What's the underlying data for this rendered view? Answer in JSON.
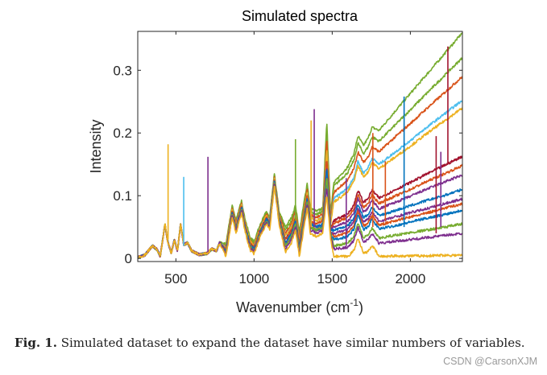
{
  "chart_data": {
    "type": "line",
    "title": "Simulated spectra",
    "xlabel": "Wavenumber (cm",
    "xlabel_sup": "-1",
    "xlabel_close": ")",
    "ylabel": "Intensity",
    "xlim": [
      256,
      2333
    ],
    "ylim": [
      -0.005,
      0.362
    ],
    "xticks": [
      500,
      1000,
      1500,
      2000
    ],
    "xtick_labels": [
      "500",
      "1000",
      "1500",
      "2000"
    ],
    "yticks": [
      0,
      0.1,
      0.2,
      0.3
    ],
    "ytick_labels": [
      "0",
      "0.1",
      "0.2",
      "0.3"
    ],
    "grid": false,
    "legend": "none",
    "x": [
      260,
      300,
      350,
      380,
      400,
      430,
      445,
      470,
      490,
      510,
      530,
      550,
      575,
      600,
      650,
      700,
      730,
      760,
      780,
      820,
      860,
      885,
      920,
      940,
      975,
      1000,
      1040,
      1080,
      1100,
      1130,
      1160,
      1200,
      1240,
      1265,
      1290,
      1320,
      1340,
      1360,
      1400,
      1440,
      1465,
      1490,
      1510,
      1550,
      1600,
      1640,
      1665,
      1700,
      1730,
      1755,
      1800,
      1900,
      2000,
      2100,
      2200,
      2333
    ],
    "series": [
      {
        "color": "#77AC30",
        "values": [
          0.002,
          0.005,
          0.02,
          0.014,
          0.003,
          0.055,
          0.03,
          0.008,
          0.03,
          0.012,
          0.055,
          0.022,
          0.025,
          0.012,
          0.006,
          0.008,
          0.015,
          0.012,
          0.025,
          0.023,
          0.085,
          0.06,
          0.093,
          0.065,
          0.033,
          0.027,
          0.055,
          0.075,
          0.065,
          0.135,
          0.075,
          0.05,
          0.065,
          0.085,
          0.042,
          0.09,
          0.12,
          0.08,
          0.075,
          0.08,
          0.22,
          0.07,
          0.12,
          0.132,
          0.146,
          0.168,
          0.195,
          0.18,
          0.192,
          0.209,
          0.204,
          0.234,
          0.263,
          0.292,
          0.321,
          0.36
        ]
      },
      {
        "color": "#77AC30",
        "values": [
          0.002,
          0.005,
          0.02,
          0.014,
          0.003,
          0.055,
          0.03,
          0.008,
          0.03,
          0.012,
          0.055,
          0.022,
          0.025,
          0.012,
          0.006,
          0.008,
          0.015,
          0.012,
          0.025,
          0.021,
          0.083,
          0.058,
          0.091,
          0.063,
          0.031,
          0.025,
          0.053,
          0.073,
          0.063,
          0.133,
          0.073,
          0.045,
          0.06,
          0.08,
          0.037,
          0.085,
          0.115,
          0.075,
          0.07,
          0.075,
          0.205,
          0.065,
          0.115,
          0.125,
          0.137,
          0.157,
          0.184,
          0.167,
          0.178,
          0.194,
          0.187,
          0.212,
          0.237,
          0.262,
          0.287,
          0.32
        ]
      },
      {
        "color": "#D95319",
        "values": [
          0.002,
          0.005,
          0.02,
          0.014,
          0.003,
          0.055,
          0.03,
          0.008,
          0.03,
          0.012,
          0.055,
          0.022,
          0.025,
          0.012,
          0.006,
          0.008,
          0.015,
          0.012,
          0.025,
          0.018,
          0.08,
          0.055,
          0.088,
          0.06,
          0.028,
          0.022,
          0.05,
          0.07,
          0.06,
          0.13,
          0.07,
          0.04,
          0.055,
          0.075,
          0.032,
          0.08,
          0.11,
          0.07,
          0.065,
          0.07,
          0.19,
          0.06,
          0.105,
          0.114,
          0.125,
          0.144,
          0.17,
          0.153,
          0.162,
          0.178,
          0.17,
          0.193,
          0.215,
          0.238,
          0.26,
          0.29
        ]
      },
      {
        "color": "#4DBEEE",
        "values": [
          0.002,
          0.005,
          0.02,
          0.014,
          0.003,
          0.055,
          0.03,
          0.008,
          0.03,
          0.012,
          0.055,
          0.022,
          0.025,
          0.012,
          0.006,
          0.008,
          0.015,
          0.012,
          0.025,
          0.016,
          0.078,
          0.053,
          0.086,
          0.058,
          0.026,
          0.02,
          0.048,
          0.068,
          0.058,
          0.128,
          0.068,
          0.035,
          0.05,
          0.07,
          0.027,
          0.075,
          0.105,
          0.065,
          0.06,
          0.065,
          0.175,
          0.055,
          0.095,
          0.103,
          0.112,
          0.13,
          0.155,
          0.136,
          0.145,
          0.16,
          0.15,
          0.169,
          0.188,
          0.208,
          0.227,
          0.252
        ]
      },
      {
        "color": "#EDB120",
        "values": [
          0.002,
          0.005,
          0.02,
          0.014,
          0.003,
          0.055,
          0.03,
          0.008,
          0.03,
          0.012,
          0.055,
          0.022,
          0.025,
          0.012,
          0.006,
          0.008,
          0.015,
          0.012,
          0.025,
          0.016,
          0.078,
          0.053,
          0.086,
          0.058,
          0.026,
          0.02,
          0.048,
          0.068,
          0.058,
          0.128,
          0.068,
          0.035,
          0.05,
          0.07,
          0.027,
          0.075,
          0.105,
          0.065,
          0.06,
          0.065,
          0.175,
          0.055,
          0.09,
          0.097,
          0.106,
          0.124,
          0.148,
          0.13,
          0.138,
          0.153,
          0.143,
          0.161,
          0.179,
          0.198,
          0.216,
          0.24
        ]
      },
      {
        "color": "#A2142F",
        "values": [
          0.002,
          0.005,
          0.02,
          0.014,
          0.003,
          0.055,
          0.03,
          0.008,
          0.03,
          0.012,
          0.055,
          0.022,
          0.025,
          0.012,
          0.006,
          0.008,
          0.015,
          0.012,
          0.025,
          0.013,
          0.075,
          0.05,
          0.083,
          0.055,
          0.023,
          0.017,
          0.045,
          0.065,
          0.055,
          0.125,
          0.065,
          0.03,
          0.045,
          0.065,
          0.022,
          0.07,
          0.1,
          0.06,
          0.055,
          0.06,
          0.16,
          0.05,
          0.06,
          0.065,
          0.071,
          0.086,
          0.109,
          0.089,
          0.096,
          0.109,
          0.096,
          0.109,
          0.121,
          0.134,
          0.146,
          0.163
        ]
      },
      {
        "color": "#D95319",
        "values": [
          0.002,
          0.005,
          0.02,
          0.014,
          0.003,
          0.055,
          0.03,
          0.008,
          0.03,
          0.012,
          0.055,
          0.022,
          0.025,
          0.012,
          0.006,
          0.008,
          0.015,
          0.012,
          0.025,
          0.013,
          0.075,
          0.05,
          0.083,
          0.055,
          0.023,
          0.017,
          0.045,
          0.065,
          0.055,
          0.125,
          0.065,
          0.03,
          0.045,
          0.065,
          0.022,
          0.07,
          0.1,
          0.06,
          0.055,
          0.06,
          0.16,
          0.05,
          0.055,
          0.06,
          0.065,
          0.08,
          0.102,
          0.081,
          0.088,
          0.101,
          0.088,
          0.099,
          0.11,
          0.122,
          0.133,
          0.148
        ]
      },
      {
        "color": "#7E2F8E",
        "values": [
          0.002,
          0.005,
          0.02,
          0.014,
          0.003,
          0.055,
          0.03,
          0.008,
          0.03,
          0.012,
          0.055,
          0.022,
          0.025,
          0.012,
          0.006,
          0.008,
          0.015,
          0.012,
          0.025,
          0.011,
          0.073,
          0.048,
          0.081,
          0.053,
          0.021,
          0.015,
          0.043,
          0.063,
          0.053,
          0.123,
          0.063,
          0.025,
          0.04,
          0.06,
          0.017,
          0.065,
          0.095,
          0.055,
          0.05,
          0.055,
          0.145,
          0.045,
          0.05,
          0.054,
          0.059,
          0.073,
          0.096,
          0.074,
          0.08,
          0.093,
          0.079,
          0.089,
          0.099,
          0.11,
          0.12,
          0.133
        ]
      },
      {
        "color": "#0072BD",
        "values": [
          0.002,
          0.005,
          0.02,
          0.014,
          0.003,
          0.055,
          0.03,
          0.008,
          0.03,
          0.012,
          0.055,
          0.022,
          0.025,
          0.012,
          0.006,
          0.008,
          0.015,
          0.012,
          0.025,
          0.011,
          0.073,
          0.048,
          0.081,
          0.053,
          0.021,
          0.015,
          0.043,
          0.063,
          0.053,
          0.123,
          0.063,
          0.025,
          0.04,
          0.06,
          0.017,
          0.065,
          0.095,
          0.055,
          0.05,
          0.055,
          0.145,
          0.045,
          0.045,
          0.048,
          0.052,
          0.065,
          0.087,
          0.065,
          0.07,
          0.082,
          0.068,
          0.076,
          0.084,
          0.092,
          0.099,
          0.11
        ]
      },
      {
        "color": "#7E2F8E",
        "values": [
          0.002,
          0.005,
          0.02,
          0.014,
          0.003,
          0.055,
          0.03,
          0.008,
          0.03,
          0.012,
          0.055,
          0.022,
          0.025,
          0.012,
          0.006,
          0.008,
          0.015,
          0.012,
          0.025,
          0.008,
          0.07,
          0.045,
          0.078,
          0.05,
          0.018,
          0.012,
          0.04,
          0.06,
          0.05,
          0.12,
          0.06,
          0.02,
          0.035,
          0.055,
          0.012,
          0.06,
          0.09,
          0.05,
          0.045,
          0.05,
          0.13,
          0.04,
          0.04,
          0.043,
          0.046,
          0.059,
          0.08,
          0.058,
          0.063,
          0.074,
          0.059,
          0.066,
          0.073,
          0.079,
          0.086,
          0.095
        ]
      },
      {
        "color": "#D95319",
        "values": [
          0.002,
          0.005,
          0.02,
          0.014,
          0.003,
          0.055,
          0.03,
          0.008,
          0.03,
          0.012,
          0.055,
          0.022,
          0.025,
          0.012,
          0.006,
          0.008,
          0.015,
          0.012,
          0.025,
          0.008,
          0.07,
          0.045,
          0.078,
          0.05,
          0.018,
          0.012,
          0.04,
          0.06,
          0.05,
          0.12,
          0.06,
          0.02,
          0.035,
          0.055,
          0.012,
          0.06,
          0.09,
          0.05,
          0.045,
          0.05,
          0.13,
          0.04,
          0.035,
          0.038,
          0.041,
          0.053,
          0.075,
          0.052,
          0.057,
          0.068,
          0.053,
          0.06,
          0.066,
          0.072,
          0.079,
          0.087
        ]
      },
      {
        "color": "#0072BD",
        "values": [
          0.002,
          0.005,
          0.02,
          0.014,
          0.003,
          0.055,
          0.03,
          0.008,
          0.03,
          0.012,
          0.055,
          0.022,
          0.025,
          0.012,
          0.006,
          0.008,
          0.015,
          0.012,
          0.025,
          0.008,
          0.07,
          0.045,
          0.078,
          0.05,
          0.018,
          0.012,
          0.04,
          0.06,
          0.05,
          0.12,
          0.06,
          0.02,
          0.035,
          0.055,
          0.012,
          0.06,
          0.09,
          0.05,
          0.045,
          0.05,
          0.13,
          0.04,
          0.03,
          0.032,
          0.035,
          0.047,
          0.069,
          0.046,
          0.051,
          0.062,
          0.047,
          0.052,
          0.058,
          0.064,
          0.069,
          0.077
        ]
      },
      {
        "color": "#77AC30",
        "values": [
          0.002,
          0.005,
          0.02,
          0.014,
          0.003,
          0.055,
          0.03,
          0.008,
          0.03,
          0.012,
          0.055,
          0.022,
          0.025,
          0.012,
          0.006,
          0.008,
          0.015,
          0.012,
          0.025,
          0.008,
          0.07,
          0.045,
          0.078,
          0.05,
          0.018,
          0.012,
          0.04,
          0.06,
          0.05,
          0.12,
          0.06,
          0.02,
          0.035,
          0.055,
          0.012,
          0.06,
          0.09,
          0.05,
          0.045,
          0.05,
          0.13,
          0.04,
          0.02,
          0.022,
          0.024,
          0.036,
          0.057,
          0.033,
          0.037,
          0.048,
          0.032,
          0.037,
          0.041,
          0.045,
          0.049,
          0.055
        ]
      },
      {
        "color": "#7E2F8E",
        "values": [
          0.002,
          0.005,
          0.02,
          0.014,
          0.003,
          0.055,
          0.03,
          0.008,
          0.03,
          0.012,
          0.055,
          0.022,
          0.025,
          0.012,
          0.006,
          0.008,
          0.015,
          0.012,
          0.025,
          0.006,
          0.068,
          0.043,
          0.076,
          0.048,
          0.016,
          0.01,
          0.038,
          0.058,
          0.048,
          0.118,
          0.058,
          0.015,
          0.03,
          0.05,
          0.007,
          0.055,
          0.085,
          0.045,
          0.04,
          0.045,
          0.115,
          0.035,
          0.015,
          0.016,
          0.018,
          0.029,
          0.05,
          0.026,
          0.03,
          0.04,
          0.024,
          0.027,
          0.03,
          0.033,
          0.036,
          0.04
        ]
      },
      {
        "color": "#EDB120",
        "values": [
          0.002,
          0.005,
          0.02,
          0.014,
          0.003,
          0.055,
          0.03,
          0.008,
          0.03,
          0.012,
          0.055,
          0.022,
          0.025,
          0.012,
          0.006,
          0.008,
          0.015,
          0.012,
          0.025,
          0.003,
          0.065,
          0.04,
          0.073,
          0.045,
          0.013,
          0.007,
          0.035,
          0.055,
          0.045,
          0.115,
          0.055,
          0.01,
          0.025,
          0.045,
          0.002,
          0.05,
          0.08,
          0.04,
          0.035,
          0.04,
          0.1,
          0.03,
          0.003,
          0.003,
          0.003,
          0.013,
          0.033,
          0.008,
          0.011,
          0.021,
          0.003,
          0.004,
          0.004,
          0.004,
          0.005,
          0.005
        ]
      }
    ],
    "spikes": [
      {
        "x": 450,
        "from": 0.03,
        "y": 0.182,
        "color": "#EDB120"
      },
      {
        "x": 550,
        "from": 0.02,
        "y": 0.13,
        "color": "#4DBEEE"
      },
      {
        "x": 705,
        "from": 0.01,
        "y": 0.162,
        "color": "#7E2F8E"
      },
      {
        "x": 1265,
        "from": 0.06,
        "y": 0.19,
        "color": "#77AC30"
      },
      {
        "x": 1365,
        "from": 0.05,
        "y": 0.22,
        "color": "#EDB120"
      },
      {
        "x": 1385,
        "from": 0.05,
        "y": 0.238,
        "color": "#7E2F8E"
      },
      {
        "x": 1590,
        "from": 0.02,
        "y": 0.128,
        "color": "#7E2F8E"
      },
      {
        "x": 1760,
        "from": 0.05,
        "y": 0.2,
        "color": "#D95319"
      },
      {
        "x": 1840,
        "from": 0.06,
        "y": 0.155,
        "color": "#D95319"
      },
      {
        "x": 1960,
        "from": 0.05,
        "y": 0.258,
        "color": "#0072BD"
      },
      {
        "x": 2165,
        "from": 0.04,
        "y": 0.195,
        "color": "#A2142F"
      },
      {
        "x": 2195,
        "from": 0.05,
        "y": 0.17,
        "color": "#7E2F8E"
      },
      {
        "x": 2240,
        "from": 0.15,
        "y": 0.338,
        "color": "#A2142F"
      }
    ]
  },
  "caption": {
    "label": "Fig. 1.",
    "text": " Simulated dataset to expand the dataset have similar numbers of variables."
  },
  "watermark": "CSDN @CarsonXJM"
}
